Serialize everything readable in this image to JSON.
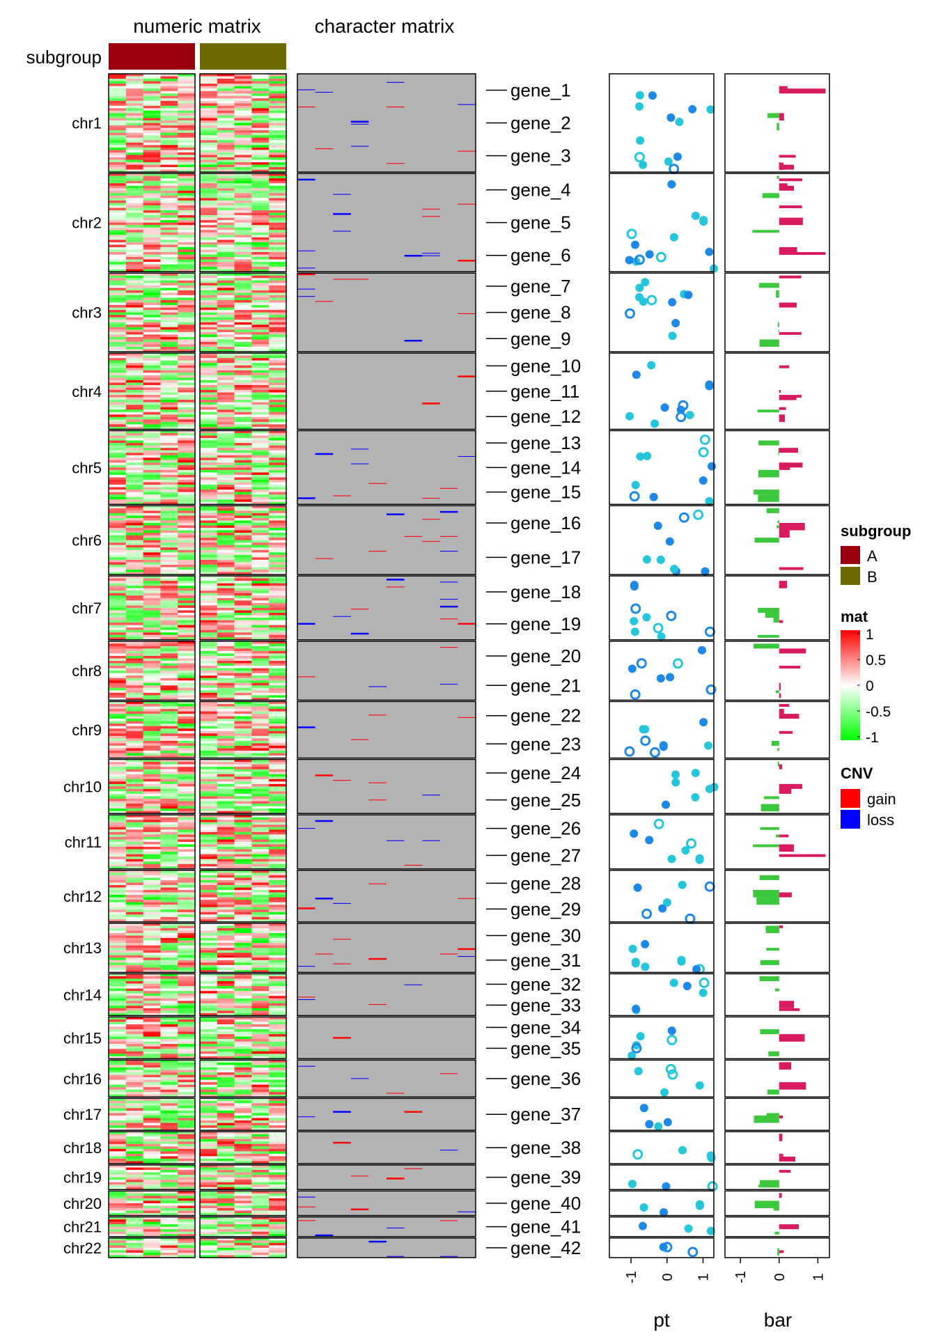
{
  "chart_data": {
    "type": "heatmap",
    "titles": {
      "numeric": "numeric matrix",
      "character": "character matrix"
    },
    "subgroup": {
      "label": "subgroup",
      "groups": [
        {
          "name": "A",
          "color": "#99000D"
        },
        {
          "name": "B",
          "color": "#6B6B00"
        }
      ]
    },
    "chromosomes": [
      "chr1",
      "chr2",
      "chr3",
      "chr4",
      "chr5",
      "chr6",
      "chr7",
      "chr8",
      "chr9",
      "chr10",
      "chr11",
      "chr12",
      "chr13",
      "chr14",
      "chr15",
      "chr16",
      "chr17",
      "chr18",
      "chr19",
      "chr20",
      "chr21",
      "chr22"
    ],
    "chromosome_rows": [
      40,
      40,
      32,
      31,
      30,
      28,
      26,
      24,
      23,
      22,
      22,
      21,
      20,
      17,
      17,
      15,
      13,
      13,
      10,
      10,
      8,
      8
    ],
    "genes": [
      "gene_1",
      "gene_2",
      "gene_3",
      "gene_4",
      "gene_5",
      "gene_6",
      "gene_7",
      "gene_8",
      "gene_9",
      "gene_10",
      "gene_11",
      "gene_12",
      "gene_13",
      "gene_14",
      "gene_15",
      "gene_16",
      "gene_17",
      "gene_18",
      "gene_19",
      "gene_20",
      "gene_21",
      "gene_22",
      "gene_23",
      "gene_24",
      "gene_25",
      "gene_26",
      "gene_27",
      "gene_28",
      "gene_29",
      "gene_30",
      "gene_31",
      "gene_32",
      "gene_33",
      "gene_34",
      "gene_35",
      "gene_36",
      "gene_37",
      "gene_38",
      "gene_39",
      "gene_40",
      "gene_41",
      "gene_42"
    ],
    "gene_chromosome": [
      "chr1",
      "chr1",
      "chr1",
      "chr2",
      "chr2",
      "chr2",
      "chr3",
      "chr3",
      "chr3",
      "chr4",
      "chr4",
      "chr4",
      "chr5",
      "chr5",
      "chr5",
      "chr6",
      "chr6",
      "chr7",
      "chr7",
      "chr8",
      "chr8",
      "chr9",
      "chr9",
      "chr10",
      "chr10",
      "chr11",
      "chr11",
      "chr12",
      "chr12",
      "chr13",
      "chr13",
      "chr14",
      "chr14",
      "chr15",
      "chr15",
      "chr16",
      "chr17",
      "chr18",
      "chr19",
      "chr20",
      "chr21",
      "chr22"
    ],
    "mat_legend": {
      "title": "mat",
      "breaks": [
        1,
        0.5,
        0,
        -0.5,
        -1
      ],
      "labels": [
        "1",
        "0.5",
        "0",
        "-0.5",
        "-1"
      ],
      "colors": {
        "high": "#FF0000",
        "mid": "#FFFFFF",
        "low": "#00FF00"
      }
    },
    "cnv_legend": {
      "title": "CNV",
      "items": [
        {
          "name": "gain",
          "color": "#FF0000"
        },
        {
          "name": "loss",
          "color": "#0000FF"
        }
      ],
      "background": "#B3B3B3"
    },
    "pt_annotation": {
      "xlabel": "pt",
      "ticks": [
        -1,
        0,
        1
      ],
      "tick_labels": [
        "-1",
        "0",
        "1"
      ],
      "xlim": [
        -1.6,
        1.3
      ],
      "colors": [
        "#1E88E5",
        "#26C6DA"
      ]
    },
    "bar_annotation": {
      "xlabel": "bar",
      "ticks": [
        -1,
        0,
        1
      ],
      "tick_labels": [
        "-1",
        "0",
        "1"
      ],
      "xlim": [
        -1.4,
        1.3
      ],
      "positive_color": "#D81B60",
      "negative_color": "#3CC83C"
    }
  }
}
